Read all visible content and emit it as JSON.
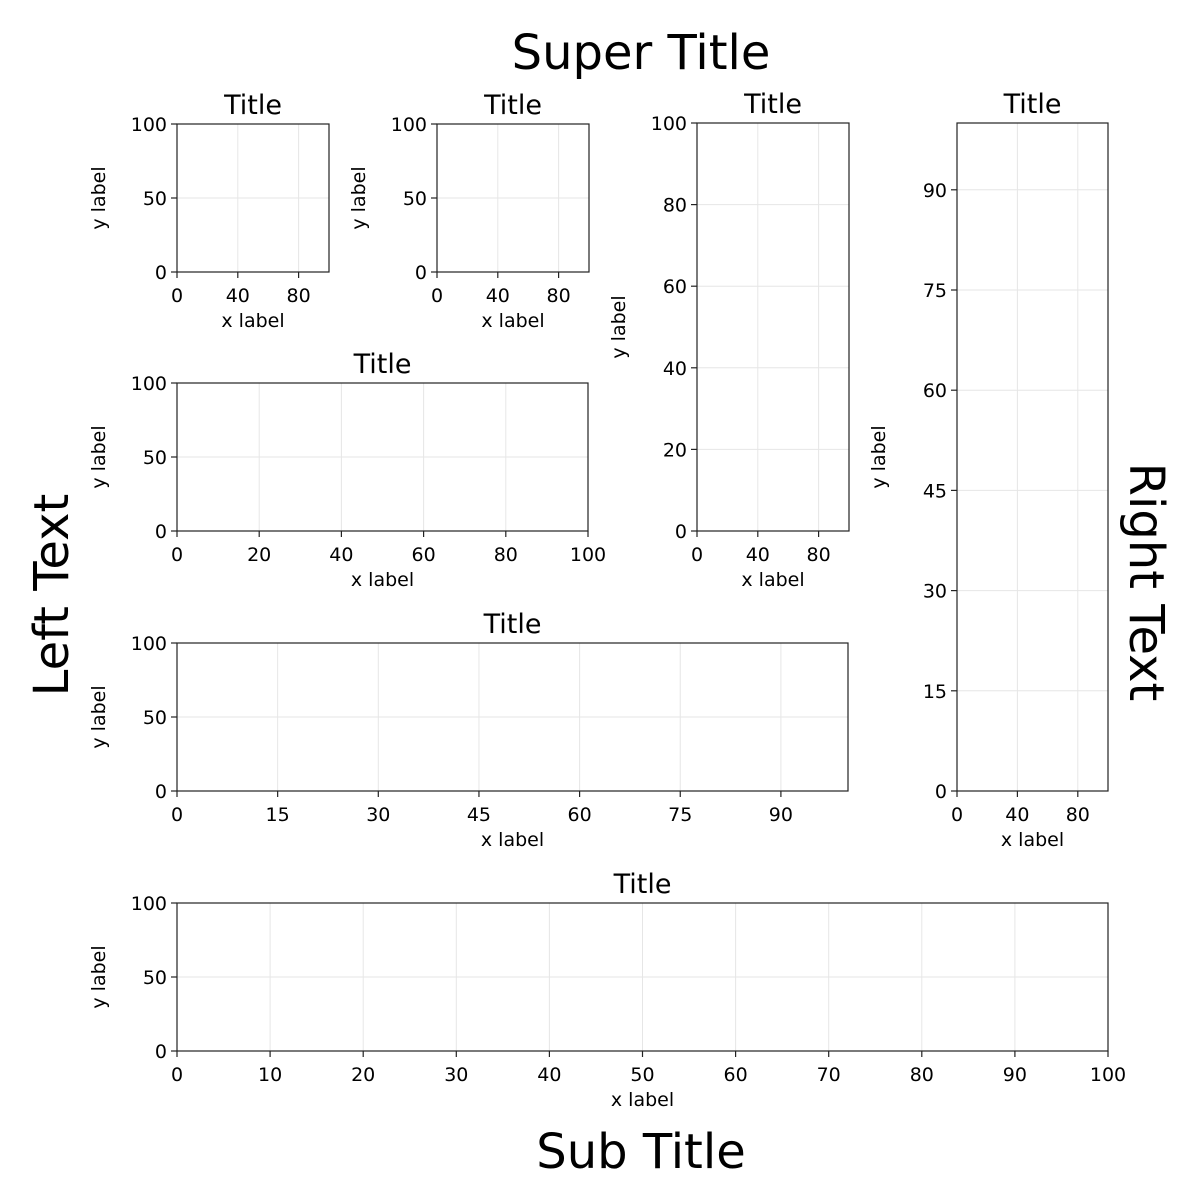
{
  "figure": {
    "super_title": "Super Title",
    "sub_title": "Sub Title",
    "left_text": "Left Text",
    "right_text": "Right Text",
    "colors": {
      "axes": "#222222",
      "grid": "#e6e6e6",
      "background": "#ffffff"
    }
  },
  "chart_data": [
    {
      "type": "line",
      "title": "Title",
      "xlabel": "x label",
      "ylabel": "y label",
      "xlim": [
        0,
        100
      ],
      "ylim": [
        0,
        100
      ],
      "xticks": [
        0,
        40,
        80
      ],
      "yticks": [
        0,
        50,
        100
      ],
      "grid": true,
      "series": []
    },
    {
      "type": "line",
      "title": "Title",
      "xlabel": "x label",
      "ylabel": "y label",
      "xlim": [
        0,
        100
      ],
      "ylim": [
        0,
        100
      ],
      "xticks": [
        0,
        40,
        80
      ],
      "yticks": [
        0,
        50,
        100
      ],
      "grid": true,
      "series": []
    },
    {
      "type": "line",
      "title": "Title",
      "xlabel": "x label",
      "ylabel": "y label",
      "xlim": [
        0,
        100
      ],
      "ylim": [
        0,
        100
      ],
      "xticks": [
        0,
        40,
        80
      ],
      "yticks": [
        0,
        20,
        40,
        60,
        80,
        100
      ],
      "grid": true,
      "series": []
    },
    {
      "type": "line",
      "title": "Title",
      "xlabel": "x label",
      "ylabel": "y label",
      "xlim": [
        0,
        100
      ],
      "ylim": [
        0,
        100
      ],
      "xticks": [
        0,
        40,
        80
      ],
      "yticks": [
        0,
        15,
        30,
        45,
        60,
        75,
        90
      ],
      "grid": true,
      "series": []
    },
    {
      "type": "line",
      "title": "Title",
      "xlabel": "x label",
      "ylabel": "y label",
      "xlim": [
        0,
        100
      ],
      "ylim": [
        0,
        100
      ],
      "xticks": [
        0,
        20,
        40,
        60,
        80,
        100
      ],
      "yticks": [
        0,
        50,
        100
      ],
      "grid": true,
      "series": []
    },
    {
      "type": "line",
      "title": "Title",
      "xlabel": "x label",
      "ylabel": "y label",
      "xlim": [
        0,
        100
      ],
      "ylim": [
        0,
        100
      ],
      "xticks": [
        0,
        15,
        30,
        45,
        60,
        75,
        90
      ],
      "yticks": [
        0,
        50,
        100
      ],
      "grid": true,
      "series": []
    },
    {
      "type": "line",
      "title": "Title",
      "xlabel": "x label",
      "ylabel": "y label",
      "xlim": [
        0,
        100
      ],
      "ylim": [
        0,
        100
      ],
      "xticks": [
        0,
        10,
        20,
        30,
        40,
        50,
        60,
        70,
        80,
        90,
        100
      ],
      "yticks": [
        0,
        50,
        100
      ],
      "grid": true,
      "series": []
    }
  ]
}
